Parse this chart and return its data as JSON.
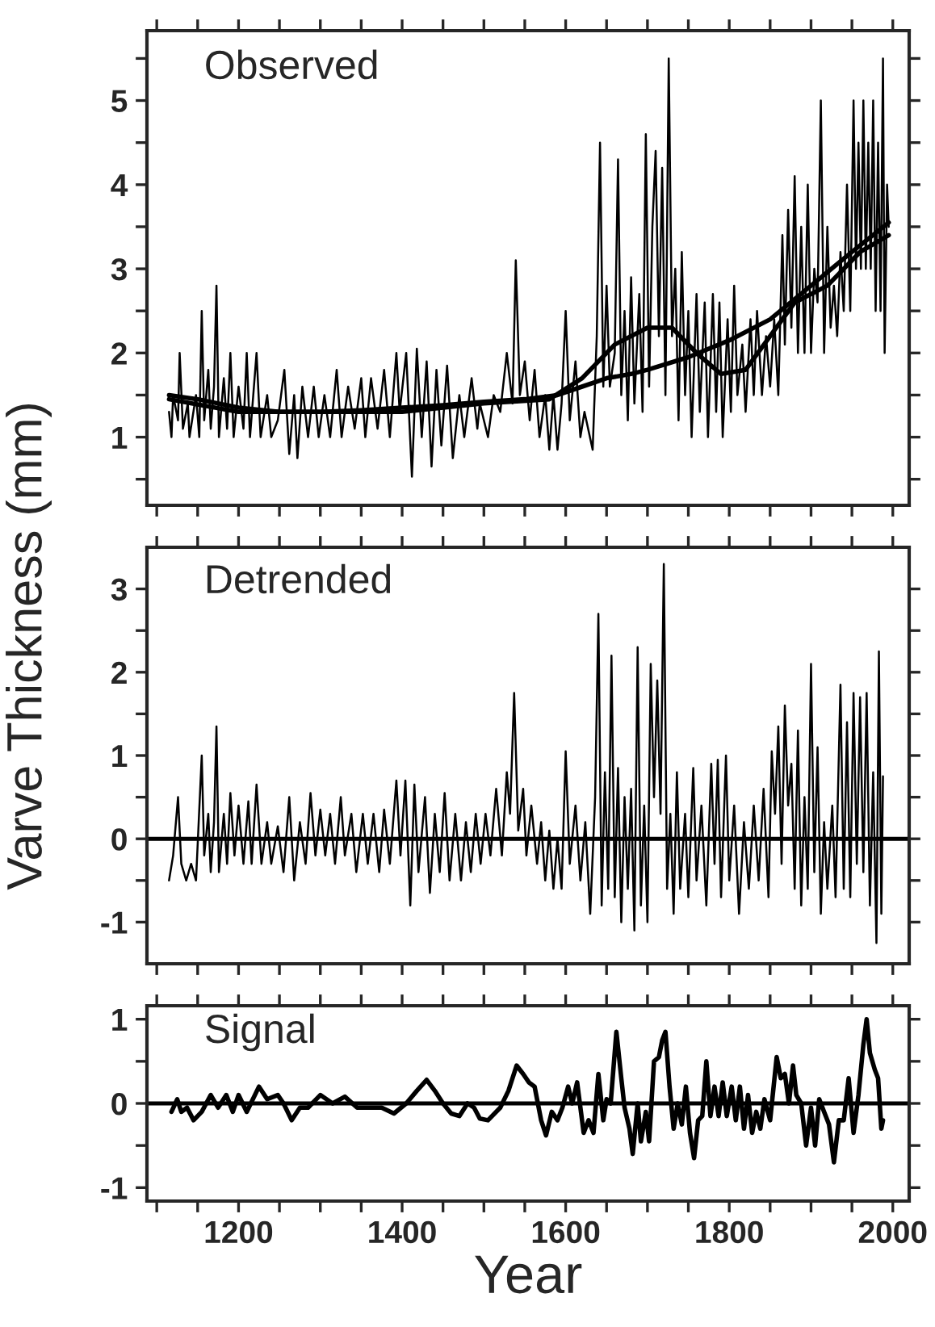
{
  "chart_data": [
    {
      "type": "line",
      "title": "Observed",
      "xlim": [
        1088,
        2020
      ],
      "ylim": [
        0.19,
        5.83
      ],
      "xticks": [
        {
          "value": 1100,
          "label": null
        },
        {
          "value": 1150,
          "label": null
        },
        {
          "value": 1200,
          "label": null
        },
        {
          "value": 1250,
          "label": null
        },
        {
          "value": 1300,
          "label": null
        },
        {
          "value": 1350,
          "label": null
        },
        {
          "value": 1400,
          "label": null
        },
        {
          "value": 1450,
          "label": null
        },
        {
          "value": 1500,
          "label": null
        },
        {
          "value": 1550,
          "label": null
        },
        {
          "value": 1600,
          "label": null
        },
        {
          "value": 1650,
          "label": null
        },
        {
          "value": 1700,
          "label": null
        },
        {
          "value": 1750,
          "label": null
        },
        {
          "value": 1800,
          "label": null
        },
        {
          "value": 1850,
          "label": null
        },
        {
          "value": 1900,
          "label": null
        },
        {
          "value": 1950,
          "label": null
        },
        {
          "value": 2000,
          "label": null
        }
      ],
      "yticks": [
        {
          "value": 0.5,
          "label": null
        },
        1,
        {
          "value": 1.5,
          "label": null
        },
        2,
        {
          "value": 2.5,
          "label": null
        },
        3,
        {
          "value": 3.5,
          "label": null
        },
        4,
        {
          "value": 4.5,
          "label": null
        },
        5,
        {
          "value": 5.5,
          "label": null
        }
      ],
      "tick_labels": "y",
      "grid": false,
      "legend": false,
      "series": [
        {
          "color": "#000000",
          "x": [
            1115,
            1118,
            1120,
            1126,
            1128,
            1132,
            1138,
            1140,
            1148,
            1152,
            1155,
            1158,
            1163,
            1166,
            1170,
            1173,
            1176,
            1182,
            1186,
            1190,
            1194,
            1200,
            1206,
            1210,
            1214,
            1222,
            1227,
            1235,
            1240,
            1248,
            1256,
            1262,
            1268,
            1272,
            1278,
            1285,
            1292,
            1298,
            1305,
            1312,
            1320,
            1326,
            1334,
            1342,
            1350,
            1355,
            1362,
            1370,
            1378,
            1385,
            1393,
            1397,
            1405,
            1412,
            1418,
            1424,
            1430,
            1436,
            1442,
            1448,
            1455,
            1462,
            1470,
            1476,
            1485,
            1492,
            1495,
            1505,
            1512,
            1520,
            1528,
            1535,
            1539,
            1544,
            1550,
            1556,
            1562,
            1568,
            1575,
            1580,
            1585,
            1590,
            1595,
            1600,
            1605,
            1612,
            1618,
            1623,
            1633,
            1638,
            1642,
            1646,
            1650,
            1654,
            1660,
            1664,
            1668,
            1672,
            1676,
            1680,
            1684,
            1690,
            1694,
            1698,
            1702,
            1706,
            1710,
            1714,
            1718,
            1722,
            1726,
            1730,
            1734,
            1738,
            1742,
            1746,
            1750,
            1754,
            1760,
            1764,
            1770,
            1774,
            1780,
            1784,
            1788,
            1792,
            1798,
            1802,
            1806,
            1810,
            1816,
            1820,
            1826,
            1830,
            1834,
            1840,
            1845,
            1850,
            1855,
            1860,
            1865,
            1868,
            1872,
            1876,
            1880,
            1884,
            1888,
            1892,
            1896,
            1900,
            1904,
            1908,
            1912,
            1916,
            1920,
            1924,
            1928,
            1932,
            1936,
            1940,
            1944,
            1948,
            1952,
            1955,
            1958,
            1961,
            1964,
            1967,
            1970,
            1973,
            1976,
            1979,
            1982,
            1985,
            1988,
            1990,
            1993,
            1995
          ],
          "values": [
            1.3,
            1.0,
            1.5,
            1.2,
            2.0,
            1.1,
            1.4,
            1.0,
            1.5,
            1.0,
            2.5,
            1.2,
            1.8,
            1.1,
            1.6,
            2.8,
            1.0,
            1.7,
            1.1,
            2.0,
            1.0,
            1.6,
            1.1,
            2.0,
            1.0,
            2.0,
            1.0,
            1.5,
            1.0,
            1.2,
            1.8,
            0.8,
            1.5,
            0.75,
            1.6,
            1.0,
            1.6,
            1.0,
            1.5,
            1.0,
            1.8,
            1.0,
            1.6,
            1.1,
            1.7,
            1.0,
            1.7,
            1.1,
            1.8,
            1.0,
            2.0,
            1.3,
            2.0,
            0.53,
            2.05,
            1.0,
            1.9,
            0.65,
            1.8,
            0.9,
            1.85,
            0.75,
            1.5,
            1.0,
            1.7,
            1.1,
            1.4,
            1.0,
            1.5,
            1.3,
            2.0,
            1.4,
            3.1,
            1.5,
            1.9,
            1.2,
            1.8,
            1.0,
            1.5,
            0.85,
            1.5,
            0.85,
            1.4,
            2.5,
            1.2,
            1.9,
            1.0,
            1.3,
            0.85,
            2.2,
            4.5,
            1.6,
            2.8,
            1.6,
            2.0,
            4.3,
            1.5,
            2.5,
            1.2,
            2.9,
            1.4,
            2.7,
            1.3,
            4.6,
            1.6,
            3.5,
            4.4,
            2.2,
            4.2,
            1.5,
            5.5,
            2.2,
            3.0,
            1.2,
            3.2,
            1.5,
            2.5,
            1.0,
            2.7,
            1.3,
            2.6,
            1.0,
            2.7,
            1.3,
            2.6,
            1.0,
            2.4,
            1.3,
            2.8,
            1.5,
            2.1,
            1.3,
            2.4,
            1.5,
            2.5,
            1.5,
            2.2,
            1.6,
            2.4,
            1.5,
            3.4,
            2.1,
            3.7,
            2.3,
            4.1,
            2.0,
            3.5,
            2.0,
            4.0,
            2.0,
            3.0,
            2.6,
            5.0,
            2.0,
            3.5,
            2.3,
            2.8,
            2.2,
            3.2,
            2.5,
            4.0,
            2.5,
            5.0,
            3.0,
            4.5,
            3.0,
            5.0,
            3.0,
            4.5,
            3.0,
            5.0,
            2.5,
            4.5,
            2.5,
            5.5,
            2.0,
            4.0,
            3.5
          ]
        },
        {
          "color": "#000000",
          "x": [
            1115,
            1150,
            1200,
            1250,
            1300,
            1350,
            1400,
            1450,
            1500,
            1550,
            1590,
            1620,
            1650,
            1680,
            1700,
            1750,
            1800,
            1850,
            1900,
            1950,
            1995
          ],
          "values": [
            1.5,
            1.45,
            1.35,
            1.3,
            1.3,
            1.32,
            1.35,
            1.38,
            1.42,
            1.45,
            1.5,
            1.6,
            1.7,
            1.75,
            1.8,
            1.95,
            2.15,
            2.4,
            2.8,
            3.2,
            3.55
          ]
        },
        {
          "color": "#000000",
          "x": [
            1115,
            1200,
            1400,
            1500,
            1580,
            1620,
            1660,
            1700,
            1730,
            1760,
            1790,
            1820,
            1850,
            1880,
            1920,
            1960,
            1995
          ],
          "values": [
            1.45,
            1.3,
            1.3,
            1.4,
            1.45,
            1.7,
            2.1,
            2.3,
            2.3,
            2.0,
            1.75,
            1.8,
            2.2,
            2.6,
            2.8,
            3.2,
            3.4
          ]
        }
      ]
    },
    {
      "type": "line",
      "title": "Detrended",
      "ylabel": "Varve Thickness (mm)",
      "xlim": [
        1088,
        2020
      ],
      "ylim": [
        -1.5,
        3.5
      ],
      "xticks": [
        {
          "value": 1100,
          "label": null
        },
        {
          "value": 1150,
          "label": null
        },
        {
          "value": 1200,
          "label": null
        },
        {
          "value": 1250,
          "label": null
        },
        {
          "value": 1300,
          "label": null
        },
        {
          "value": 1350,
          "label": null
        },
        {
          "value": 1400,
          "label": null
        },
        {
          "value": 1450,
          "label": null
        },
        {
          "value": 1500,
          "label": null
        },
        {
          "value": 1550,
          "label": null
        },
        {
          "value": 1600,
          "label": null
        },
        {
          "value": 1650,
          "label": null
        },
        {
          "value": 1700,
          "label": null
        },
        {
          "value": 1750,
          "label": null
        },
        {
          "value": 1800,
          "label": null
        },
        {
          "value": 1850,
          "label": null
        },
        {
          "value": 1900,
          "label": null
        },
        {
          "value": 1950,
          "label": null
        },
        {
          "value": 2000,
          "label": null
        }
      ],
      "yticks": [
        -1,
        {
          "value": -0.5,
          "label": null
        },
        0,
        {
          "value": 0.5,
          "label": null
        },
        1,
        {
          "value": 1.5,
          "label": null
        },
        2,
        {
          "value": 2.5,
          "label": null
        },
        3
      ],
      "tick_labels": "y",
      "grid": false,
      "legend": false,
      "ref_lines": [
        {
          "axis": "y",
          "value": 0,
          "color": "#000000"
        }
      ],
      "series": [
        {
          "color": "#000000",
          "x": [
            1115,
            1120,
            1126,
            1130,
            1136,
            1142,
            1148,
            1155,
            1158,
            1163,
            1166,
            1170,
            1173,
            1176,
            1182,
            1186,
            1190,
            1195,
            1200,
            1206,
            1212,
            1216,
            1222,
            1228,
            1235,
            1240,
            1248,
            1255,
            1262,
            1268,
            1275,
            1282,
            1288,
            1294,
            1300,
            1306,
            1312,
            1318,
            1325,
            1330,
            1338,
            1344,
            1352,
            1358,
            1365,
            1372,
            1378,
            1385,
            1393,
            1398,
            1404,
            1410,
            1415,
            1420,
            1428,
            1434,
            1440,
            1446,
            1452,
            1458,
            1465,
            1472,
            1478,
            1484,
            1490,
            1496,
            1502,
            1508,
            1515,
            1522,
            1528,
            1532,
            1537,
            1542,
            1548,
            1552,
            1558,
            1565,
            1570,
            1575,
            1580,
            1585,
            1590,
            1595,
            1600,
            1605,
            1612,
            1618,
            1624,
            1630,
            1636,
            1640,
            1644,
            1648,
            1652,
            1656,
            1660,
            1664,
            1668,
            1672,
            1676,
            1680,
            1684,
            1688,
            1692,
            1696,
            1700,
            1704,
            1708,
            1712,
            1716,
            1720,
            1724,
            1728,
            1732,
            1736,
            1740,
            1746,
            1750,
            1756,
            1760,
            1766,
            1772,
            1778,
            1782,
            1786,
            1790,
            1796,
            1800,
            1806,
            1812,
            1818,
            1824,
            1830,
            1836,
            1842,
            1848,
            1852,
            1856,
            1860,
            1864,
            1868,
            1872,
            1876,
            1880,
            1884,
            1888,
            1892,
            1896,
            1900,
            1904,
            1908,
            1912,
            1916,
            1920,
            1926,
            1930,
            1936,
            1940,
            1944,
            1948,
            1952,
            1956,
            1960,
            1964,
            1968,
            1972,
            1976,
            1980,
            1983,
            1986,
            1988
          ],
          "values": [
            -0.5,
            -0.2,
            0.5,
            -0.3,
            -0.5,
            -0.3,
            -0.5,
            1.0,
            -0.2,
            0.3,
            -0.4,
            0.2,
            1.35,
            -0.4,
            0.3,
            -0.3,
            0.55,
            -0.2,
            0.4,
            -0.3,
            0.45,
            -0.3,
            0.65,
            -0.3,
            0.2,
            -0.3,
            0.15,
            -0.4,
            0.5,
            -0.5,
            0.2,
            -0.3,
            0.55,
            -0.2,
            0.35,
            -0.2,
            0.3,
            -0.3,
            0.5,
            -0.2,
            0.3,
            -0.4,
            0.3,
            -0.3,
            0.3,
            -0.4,
            0.35,
            -0.3,
            0.7,
            -0.2,
            0.7,
            -0.8,
            0.65,
            -0.4,
            0.5,
            -0.65,
            0.3,
            -0.4,
            0.55,
            -0.5,
            0.3,
            -0.5,
            0.2,
            -0.4,
            0.3,
            -0.3,
            0.3,
            -0.2,
            0.6,
            -0.2,
            0.8,
            0.3,
            1.75,
            0.1,
            0.6,
            -0.2,
            0.4,
            -0.3,
            0.2,
            -0.5,
            0.1,
            -0.6,
            0.0,
            -0.6,
            1.05,
            -0.3,
            0.4,
            -0.5,
            0.2,
            -0.9,
            0.5,
            2.7,
            -0.8,
            0.8,
            -0.6,
            2.2,
            -0.7,
            0.85,
            -1.0,
            0.5,
            -0.6,
            0.6,
            -1.1,
            2.3,
            -0.8,
            0.4,
            -1.0,
            2.1,
            0.5,
            1.9,
            0.3,
            3.3,
            -0.6,
            0.3,
            -0.9,
            0.8,
            -0.6,
            0.3,
            -0.7,
            0.85,
            -0.5,
            0.4,
            -0.8,
            0.9,
            -0.3,
            0.95,
            -0.7,
            1.0,
            -0.5,
            0.4,
            -0.9,
            0.2,
            -0.6,
            0.4,
            -0.5,
            0.6,
            -0.7,
            1.05,
            0.3,
            1.35,
            -0.3,
            1.6,
            0.4,
            0.9,
            -0.6,
            1.3,
            -0.8,
            0.5,
            -0.6,
            2.1,
            -0.4,
            1.1,
            -0.9,
            0.2,
            -0.6,
            0.4,
            -0.7,
            1.85,
            -0.6,
            1.4,
            -0.7,
            1.75,
            -0.3,
            1.7,
            -0.4,
            1.75,
            -0.8,
            0.8,
            -1.25,
            2.25,
            -0.9,
            0.75
          ]
        }
      ]
    },
    {
      "type": "line",
      "title": "Signal",
      "xlabel": "Year",
      "xlim": [
        1088,
        2020
      ],
      "ylim": [
        -1.16,
        1.16
      ],
      "xticks": [
        {
          "value": 1100,
          "label": null
        },
        {
          "value": 1150,
          "label": null
        },
        1200,
        {
          "value": 1250,
          "label": null
        },
        {
          "value": 1300,
          "label": null
        },
        {
          "value": 1350,
          "label": null
        },
        1400,
        {
          "value": 1450,
          "label": null
        },
        {
          "value": 1500,
          "label": null
        },
        {
          "value": 1550,
          "label": null
        },
        1600,
        {
          "value": 1650,
          "label": null
        },
        {
          "value": 1700,
          "label": null
        },
        {
          "value": 1750,
          "label": null
        },
        1800,
        {
          "value": 1850,
          "label": null
        },
        {
          "value": 1900,
          "label": null
        },
        {
          "value": 1950,
          "label": null
        },
        2000
      ],
      "yticks": [
        -1,
        {
          "value": -0.5,
          "label": null
        },
        0,
        {
          "value": 0.5,
          "label": null
        },
        1
      ],
      "grid": false,
      "legend": false,
      "ref_lines": [
        {
          "axis": "y",
          "value": 0,
          "color": "#000000"
        }
      ],
      "series": [
        {
          "color": "#000000",
          "x": [
            1118,
            1125,
            1130,
            1137,
            1145,
            1155,
            1166,
            1175,
            1185,
            1193,
            1200,
            1210,
            1225,
            1235,
            1248,
            1255,
            1265,
            1275,
            1285,
            1300,
            1315,
            1330,
            1345,
            1360,
            1375,
            1390,
            1405,
            1418,
            1430,
            1440,
            1450,
            1460,
            1470,
            1480,
            1488,
            1495,
            1505,
            1520,
            1530,
            1540,
            1548,
            1555,
            1562,
            1570,
            1576,
            1583,
            1590,
            1596,
            1603,
            1608,
            1614,
            1618,
            1622,
            1628,
            1634,
            1640,
            1646,
            1650,
            1655,
            1662,
            1668,
            1672,
            1678,
            1682,
            1688,
            1692,
            1698,
            1702,
            1708,
            1714,
            1718,
            1722,
            1727,
            1732,
            1737,
            1742,
            1747,
            1752,
            1757,
            1762,
            1767,
            1772,
            1777,
            1782,
            1787,
            1792,
            1797,
            1803,
            1808,
            1813,
            1818,
            1823,
            1828,
            1833,
            1838,
            1843,
            1850,
            1858,
            1863,
            1868,
            1873,
            1878,
            1882,
            1888,
            1894,
            1900,
            1905,
            1910,
            1916,
            1922,
            1928,
            1934,
            1940,
            1946,
            1952,
            1958,
            1964,
            1968,
            1972,
            1978,
            1982,
            1986,
            1988
          ],
          "values": [
            -0.1,
            0.05,
            -0.1,
            -0.05,
            -0.2,
            -0.1,
            0.1,
            -0.05,
            0.1,
            -0.1,
            0.1,
            -0.1,
            0.2,
            0.05,
            0.1,
            0.0,
            -0.2,
            -0.05,
            -0.05,
            0.1,
            0.0,
            0.08,
            -0.05,
            -0.05,
            -0.05,
            -0.12,
            0.0,
            0.15,
            0.28,
            0.15,
            0.0,
            -0.12,
            -0.15,
            0.0,
            -0.05,
            -0.18,
            -0.2,
            -0.05,
            0.15,
            0.45,
            0.35,
            0.25,
            0.2,
            -0.2,
            -0.38,
            -0.1,
            -0.2,
            -0.05,
            0.2,
            0.0,
            0.25,
            -0.05,
            -0.35,
            -0.2,
            -0.35,
            0.35,
            -0.2,
            0.05,
            0.0,
            0.85,
            0.3,
            -0.05,
            -0.3,
            -0.6,
            0.0,
            -0.45,
            -0.1,
            -0.45,
            0.5,
            0.55,
            0.75,
            0.85,
            0.2,
            -0.3,
            0.0,
            -0.25,
            0.2,
            -0.35,
            -0.65,
            -0.2,
            -0.15,
            0.5,
            -0.15,
            0.2,
            -0.15,
            0.25,
            -0.15,
            0.2,
            -0.2,
            0.2,
            -0.3,
            0.1,
            -0.35,
            -0.1,
            -0.3,
            0.05,
            -0.2,
            0.55,
            0.3,
            0.35,
            0.0,
            0.45,
            0.1,
            0.0,
            -0.5,
            -0.05,
            -0.5,
            0.05,
            -0.1,
            -0.25,
            -0.7,
            -0.2,
            -0.2,
            0.3,
            -0.35,
            0.1,
            0.7,
            1.0,
            0.6,
            0.4,
            0.3,
            -0.3,
            -0.2
          ]
        }
      ]
    }
  ]
}
